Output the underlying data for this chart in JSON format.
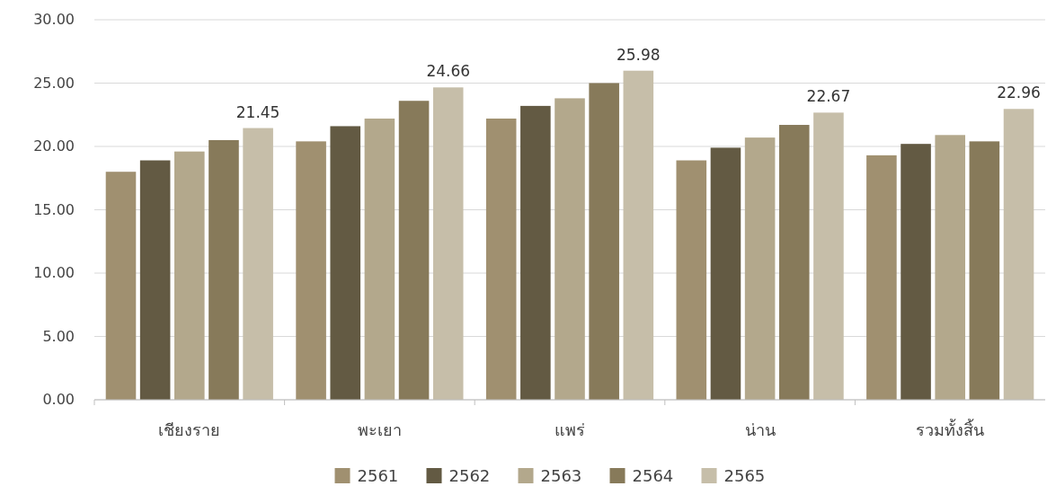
{
  "chart_data": {
    "type": "bar",
    "categories": [
      "เชียงราย",
      "พะเยา",
      "แพร่",
      "น่าน",
      "รวมทั้งสิ้น"
    ],
    "series": [
      {
        "name": "2561",
        "color": "#a09070",
        "values": [
          18.0,
          20.4,
          22.2,
          18.9,
          19.3
        ]
      },
      {
        "name": "2562",
        "color": "#635a43",
        "values": [
          18.9,
          21.6,
          23.2,
          19.9,
          20.2
        ]
      },
      {
        "name": "2563",
        "color": "#b3a88c",
        "values": [
          19.6,
          22.2,
          23.8,
          20.7,
          20.9
        ]
      },
      {
        "name": "2564",
        "color": "#877a5a",
        "values": [
          20.5,
          23.6,
          25.0,
          21.7,
          20.4
        ]
      },
      {
        "name": "2565",
        "color": "#c6bea9",
        "values": [
          21.45,
          24.66,
          25.98,
          22.67,
          22.96
        ],
        "value_labels": [
          "21.45",
          "24.66",
          "25.98",
          "22.67",
          "22.96"
        ]
      }
    ],
    "ylim": [
      0,
      30
    ],
    "yticks": [
      {
        "value": 0,
        "label": "0.00"
      },
      {
        "value": 5,
        "label": "5.00"
      },
      {
        "value": 10,
        "label": "10.00"
      },
      {
        "value": 15,
        "label": "15.00"
      },
      {
        "value": 20,
        "label": "20.00"
      },
      {
        "value": 25,
        "label": "25.00"
      },
      {
        "value": 30,
        "label": "30.00"
      }
    ],
    "grid": "y",
    "legend": "bottom"
  }
}
